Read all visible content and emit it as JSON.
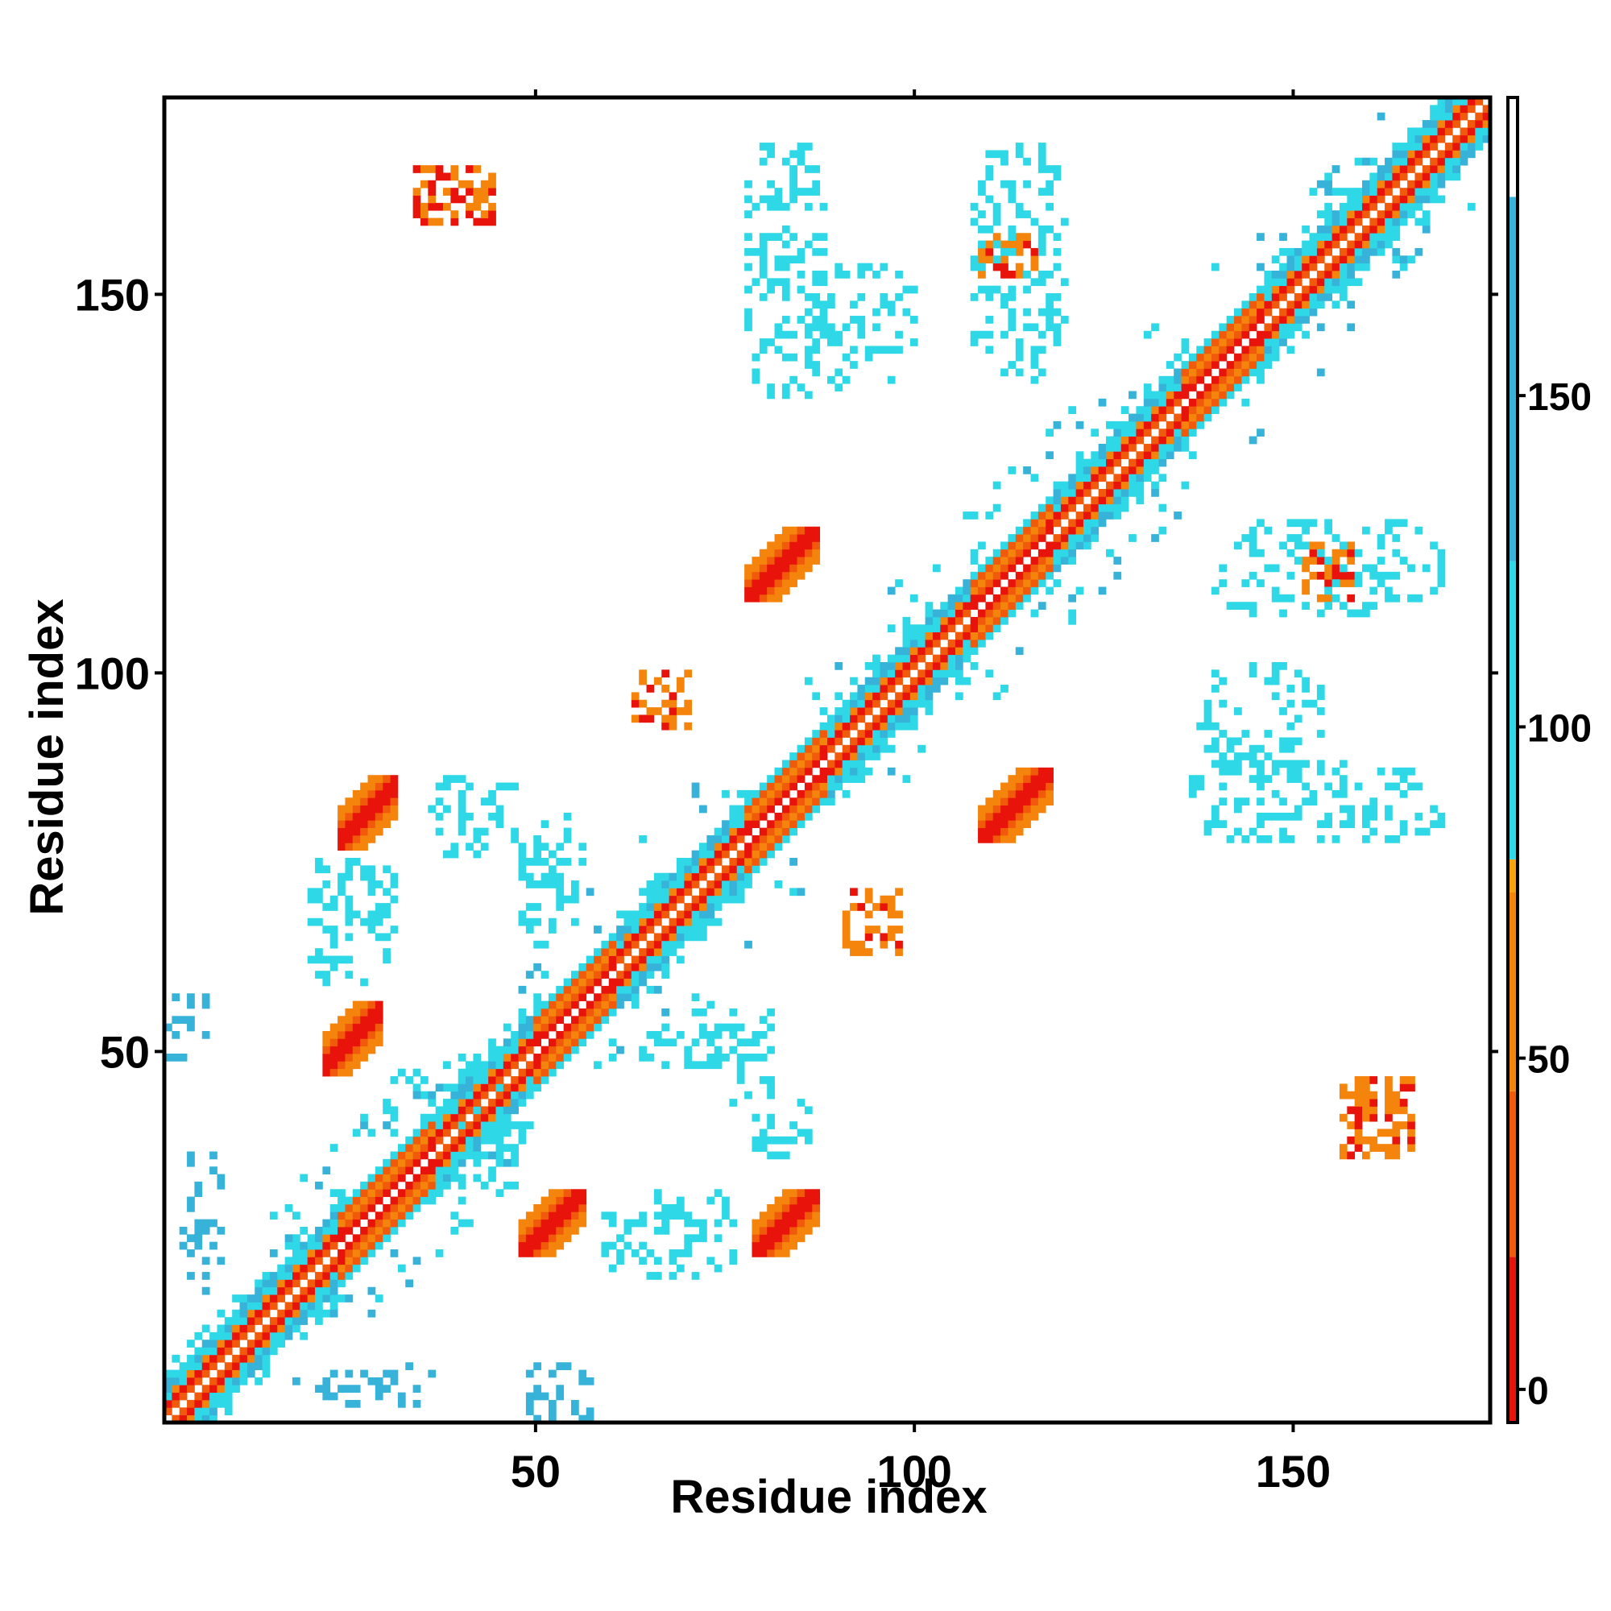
{
  "chart_data": {
    "type": "heatmap",
    "title": "",
    "xlabel": "Residue index",
    "ylabel": "Residue index",
    "xlim": [
      1,
      176
    ],
    "ylim": [
      1,
      176
    ],
    "x_ticks": [
      50,
      100,
      150
    ],
    "y_ticks": [
      50,
      100,
      150
    ],
    "x_tick_labels": [
      "50",
      "100",
      "150"
    ],
    "y_tick_labels": [
      "50",
      "100",
      "150"
    ],
    "grid": false,
    "legend": "none",
    "colorbar": {
      "position": "right",
      "range": [
        -5,
        195
      ],
      "tick_values": [
        0,
        50,
        100,
        150
      ],
      "tick_labels": [
        "0",
        "50",
        "100",
        "150"
      ],
      "bands": [
        {
          "from": -5,
          "to": 20,
          "color": "#e8140c"
        },
        {
          "from": 20,
          "to": 45,
          "color": "#f05a0a"
        },
        {
          "from": 45,
          "to": 75,
          "color": "#f4840c"
        },
        {
          "from": 75,
          "to": 80,
          "color": "#f7a30d"
        },
        {
          "from": 80,
          "to": 125,
          "color": "#2fd8e6"
        },
        {
          "from": 125,
          "to": 180,
          "color": "#37b2d8"
        },
        {
          "from": 180,
          "to": 195,
          "color": "#ffffff"
        }
      ]
    },
    "colors": {
      "red": "#e8140c",
      "orange_red": "#f05a0a",
      "orange": "#f4840c",
      "cyan": "#2fd8e6",
      "blue": "#37b2d8",
      "steel": "#4a8ec6"
    },
    "diagonal_segments": [
      {
        "from": 1,
        "to": 24,
        "kind": "mixed"
      },
      {
        "from": 24,
        "to": 36,
        "kind": "helix"
      },
      {
        "from": 36,
        "to": 50,
        "kind": "mixed"
      },
      {
        "from": 50,
        "to": 60,
        "kind": "helix"
      },
      {
        "from": 60,
        "to": 78,
        "kind": "mixed"
      },
      {
        "from": 78,
        "to": 88,
        "kind": "helix"
      },
      {
        "from": 88,
        "to": 108,
        "kind": "mixed"
      },
      {
        "from": 108,
        "to": 118,
        "kind": "helix"
      },
      {
        "from": 118,
        "to": 136,
        "kind": "mixed"
      },
      {
        "from": 136,
        "to": 146,
        "kind": "helix"
      },
      {
        "from": 146,
        "to": 176,
        "kind": "mixed"
      }
    ],
    "blocks": [
      {
        "x": [
          22,
          29
        ],
        "y": [
          47,
          56
        ],
        "value": 10
      },
      {
        "x": [
          48,
          56
        ],
        "y": [
          23,
          31
        ],
        "value": 10
      },
      {
        "x": [
          24,
          31
        ],
        "y": [
          77,
          86
        ],
        "value": 10
      },
      {
        "x": [
          79,
          87
        ],
        "y": [
          23,
          31
        ],
        "value": 10
      },
      {
        "x": [
          78,
          87
        ],
        "y": [
          110,
          119
        ],
        "value": 10
      },
      {
        "x": [
          109,
          118
        ],
        "y": [
          78,
          87
        ],
        "value": 10
      },
      {
        "x": [
          109,
          116
        ],
        "y": [
          153,
          158
        ],
        "value": 45
      },
      {
        "x": [
          152,
          158
        ],
        "y": [
          110,
          117
        ],
        "value": 45
      },
      {
        "x": [
          34,
          44
        ],
        "y": [
          160,
          167
        ],
        "value": 55
      },
      {
        "x": [
          157,
          166
        ],
        "y": [
          36,
          46
        ],
        "value": 55
      },
      {
        "x": [
          63,
          70
        ],
        "y": [
          93,
          100
        ],
        "value": 60
      },
      {
        "x": [
          91,
          98
        ],
        "y": [
          63,
          71
        ],
        "value": 60
      },
      {
        "x": [
          0,
          8
        ],
        "y": [
          49,
          57
        ],
        "value": 145
      },
      {
        "x": [
          49,
          57
        ],
        "y": [
          0,
          8
        ],
        "value": 145
      },
      {
        "x": [
          25,
          31
        ],
        "y": [
          65,
          75
        ],
        "value": 110
      },
      {
        "x": [
          65,
          75
        ],
        "y": [
          25,
          31
        ],
        "value": 110
      },
      {
        "x": [
          78,
          88
        ],
        "y": [
          137,
          170
        ],
        "value": 105
      },
      {
        "x": [
          108,
          120
        ],
        "y": [
          139,
          170
        ],
        "value": 105
      },
      {
        "x": [
          139,
          170
        ],
        "y": [
          108,
          120
        ],
        "value": 105
      },
      {
        "x": [
          137,
          170
        ],
        "y": [
          78,
          88
        ],
        "value": 105
      },
      {
        "x": [
          86,
          101
        ],
        "y": [
          138,
          154
        ],
        "value": 110
      },
      {
        "x": [
          138,
          154
        ],
        "y": [
          86,
          101
        ],
        "value": 110
      },
      {
        "x": [
          36,
          48
        ],
        "y": [
          76,
          86
        ],
        "value": 120
      },
      {
        "x": [
          76,
          86
        ],
        "y": [
          36,
          48
        ],
        "value": 120
      },
      {
        "x": [
          48,
          56
        ],
        "y": [
          70,
          81
        ],
        "value": 115
      },
      {
        "x": [
          70,
          81
        ],
        "y": [
          48,
          56
        ],
        "value": 115
      },
      {
        "x": [
          59,
          76
        ],
        "y": [
          20,
          30
        ],
        "value": 110
      },
      {
        "x": [
          20,
          30
        ],
        "y": [
          59,
          76
        ],
        "value": 110
      },
      {
        "x": [
          64,
          79
        ],
        "y": [
          48,
          53
        ],
        "value": 115
      },
      {
        "x": [
          48,
          53
        ],
        "y": [
          64,
          79
        ],
        "value": 115
      },
      {
        "x": [
          3,
          8
        ],
        "y": [
          20,
          36
        ],
        "value": 140
      },
      {
        "x": [
          20,
          36
        ],
        "y": [
          3,
          8
        ],
        "value": 140
      },
      {
        "x": [
          30,
          45
        ],
        "y": [
          38,
          48
        ],
        "value": 120
      },
      {
        "x": [
          38,
          48
        ],
        "y": [
          30,
          45
        ],
        "value": 120
      }
    ]
  }
}
